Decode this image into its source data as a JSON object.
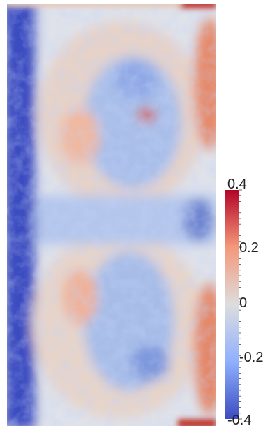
{
  "figure": {
    "kind": "scalar field contour plot with color bar",
    "colormap": [
      "#3b4cc0",
      "#8fb0fe",
      "#dddddd",
      "#f4987a",
      "#b40426"
    ]
  },
  "colorbar": {
    "range": [
      -0.4,
      0.4
    ],
    "tick_labels": [
      "0.4",
      "0.2",
      "0",
      "-0.2",
      "-0.4"
    ]
  },
  "field": {
    "background_color": "#e9e3df",
    "left_band_color": "#3b4cc0"
  }
}
